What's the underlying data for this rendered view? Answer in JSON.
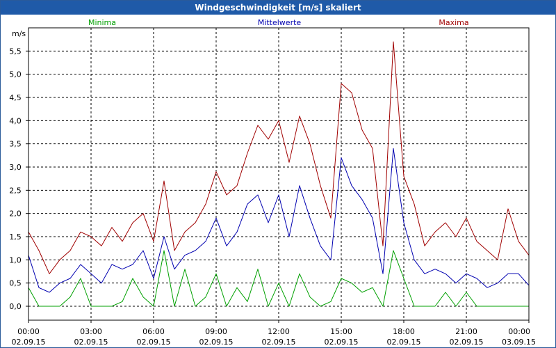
{
  "window": {
    "title": "Windgeschwindigkeit [m/s] skaliert"
  },
  "chart_data": {
    "type": "line",
    "title": "Windgeschwindigkeit [m/s] skaliert",
    "ylabel": "m/s",
    "ylim": [
      -0.3,
      6.0
    ],
    "yticks": [
      "0,0",
      "0,5",
      "1,0",
      "1,5",
      "2,0",
      "2,5",
      "3,0",
      "3,5",
      "4,0",
      "4,5",
      "5,0",
      "5,5"
    ],
    "ytick_values": [
      0,
      0.5,
      1,
      1.5,
      2,
      2.5,
      3,
      3.5,
      4,
      4.5,
      5,
      5.5
    ],
    "xlim": [
      0,
      24
    ],
    "xticks": [
      {
        "time": "00:00",
        "date": "02.09.15"
      },
      {
        "time": "03:00",
        "date": "02.09.15"
      },
      {
        "time": "06:00",
        "date": "02.09.15"
      },
      {
        "time": "09:00",
        "date": "02.09.15"
      },
      {
        "time": "12:00",
        "date": "02.09.15"
      },
      {
        "time": "15:00",
        "date": "02.09.15"
      },
      {
        "time": "18:00",
        "date": "02.09.15"
      },
      {
        "time": "21:00",
        "date": "02.09.15"
      },
      {
        "time": "00:00",
        "date": "03.09.15"
      }
    ],
    "grid": true,
    "legend": {
      "minima": "Minima",
      "mean": "Mittelwerte",
      "maxima": "Maxima"
    },
    "colors": {
      "minima": "#00a000",
      "mean": "#0000b0",
      "maxima": "#a00000",
      "grid": "#000000",
      "title_bg": "#1f5aa8"
    },
    "x": [
      0,
      0.5,
      1,
      1.5,
      2,
      2.5,
      3,
      3.5,
      4,
      4.5,
      5,
      5.5,
      6,
      6.5,
      7,
      7.5,
      8,
      8.5,
      9,
      9.5,
      10,
      10.5,
      11,
      11.5,
      12,
      12.5,
      13,
      13.5,
      14,
      14.5,
      15,
      15.5,
      16,
      16.5,
      17,
      17.5,
      18,
      18.5,
      19,
      19.5,
      20,
      20.5,
      21,
      21.5,
      22,
      22.5,
      23,
      23.5,
      24
    ],
    "series": [
      {
        "name": "Maxima",
        "values": [
          1.6,
          1.2,
          0.7,
          1.0,
          1.2,
          1.6,
          1.5,
          1.3,
          1.7,
          1.4,
          1.8,
          2.0,
          1.4,
          2.7,
          1.2,
          1.6,
          1.8,
          2.2,
          2.9,
          2.4,
          2.6,
          3.3,
          3.9,
          3.6,
          4.0,
          3.1,
          4.1,
          3.5,
          2.6,
          1.9,
          4.8,
          4.6,
          3.8,
          3.4,
          1.3,
          5.7,
          2.8,
          2.2,
          1.3,
          1.6,
          1.8,
          1.5,
          1.9,
          1.4,
          1.2,
          1.0,
          2.1,
          1.4,
          1.1
        ]
      },
      {
        "name": "Mittelwerte",
        "values": [
          1.1,
          0.4,
          0.3,
          0.5,
          0.6,
          0.9,
          0.7,
          0.5,
          0.9,
          0.8,
          0.9,
          1.2,
          0.6,
          1.5,
          0.8,
          1.1,
          1.2,
          1.4,
          1.9,
          1.3,
          1.6,
          2.2,
          2.4,
          1.8,
          2.4,
          1.5,
          2.6,
          1.9,
          1.3,
          1.0,
          3.2,
          2.6,
          2.3,
          1.9,
          0.7,
          3.4,
          1.8,
          1.0,
          0.7,
          0.8,
          0.7,
          0.5,
          0.7,
          0.6,
          0.4,
          0.5,
          0.7,
          0.7,
          0.45
        ]
      },
      {
        "name": "Minima",
        "values": [
          0.4,
          0.0,
          0.0,
          0.0,
          0.2,
          0.6,
          0.0,
          0.0,
          0.0,
          0.1,
          0.6,
          0.2,
          0.0,
          1.2,
          0.0,
          0.8,
          0.0,
          0.2,
          0.7,
          0.0,
          0.4,
          0.1,
          0.8,
          0.0,
          0.5,
          0.0,
          0.7,
          0.2,
          0.0,
          0.1,
          0.6,
          0.5,
          0.3,
          0.4,
          0.0,
          1.2,
          0.6,
          0.0,
          0.0,
          0.0,
          0.3,
          0.0,
          0.3,
          0.0,
          0.0,
          0.0,
          0.0,
          0.0,
          0.0
        ]
      }
    ]
  }
}
